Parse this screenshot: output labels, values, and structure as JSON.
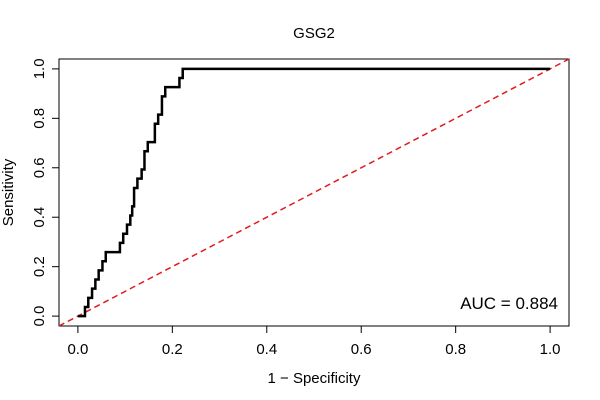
{
  "chart_data": {
    "type": "line",
    "title": "GSG2",
    "xlabel": "1 − Specificity",
    "ylabel": "Sensitivity",
    "xlim": [
      -0.04,
      1.04
    ],
    "ylim": [
      -0.04,
      1.04
    ],
    "x_ticks": [
      0.0,
      0.2,
      0.4,
      0.6,
      0.8,
      1.0
    ],
    "x_tick_labels": [
      "0.0",
      "0.2",
      "0.4",
      "0.6",
      "0.8",
      "1.0"
    ],
    "y_ticks": [
      0.0,
      0.2,
      0.4,
      0.6,
      0.8,
      1.0
    ],
    "y_tick_labels": [
      "0.0",
      "0.2",
      "0.4",
      "0.6",
      "0.8",
      "1.0"
    ],
    "annotation": "AUC = 0.884",
    "grid": false,
    "series": [
      {
        "name": "ROC curve",
        "color": "#000000",
        "style": "solid",
        "x": [
          0.0,
          0.015,
          0.015,
          0.022,
          0.022,
          0.03,
          0.03,
          0.037,
          0.037,
          0.044,
          0.044,
          0.052,
          0.052,
          0.059,
          0.059,
          0.089,
          0.089,
          0.096,
          0.096,
          0.104,
          0.104,
          0.111,
          0.111,
          0.115,
          0.115,
          0.119,
          0.119,
          0.126,
          0.126,
          0.135,
          0.135,
          0.141,
          0.141,
          0.148,
          0.148,
          0.163,
          0.163,
          0.17,
          0.17,
          0.178,
          0.178,
          0.185,
          0.185,
          0.215,
          0.215,
          0.222,
          0.222,
          1.0
        ],
        "y": [
          0.0,
          0.0,
          0.037,
          0.037,
          0.074,
          0.074,
          0.111,
          0.111,
          0.148,
          0.148,
          0.185,
          0.185,
          0.222,
          0.222,
          0.259,
          0.259,
          0.296,
          0.296,
          0.333,
          0.333,
          0.37,
          0.37,
          0.407,
          0.407,
          0.444,
          0.444,
          0.518,
          0.518,
          0.556,
          0.556,
          0.593,
          0.593,
          0.667,
          0.667,
          0.704,
          0.704,
          0.778,
          0.778,
          0.815,
          0.815,
          0.889,
          0.889,
          0.926,
          0.926,
          0.963,
          0.963,
          1.0,
          1.0
        ]
      },
      {
        "name": "Reference line",
        "color": "#e31a1c",
        "style": "dashed",
        "x": [
          -0.04,
          1.04
        ],
        "y": [
          -0.04,
          1.04
        ]
      }
    ]
  }
}
